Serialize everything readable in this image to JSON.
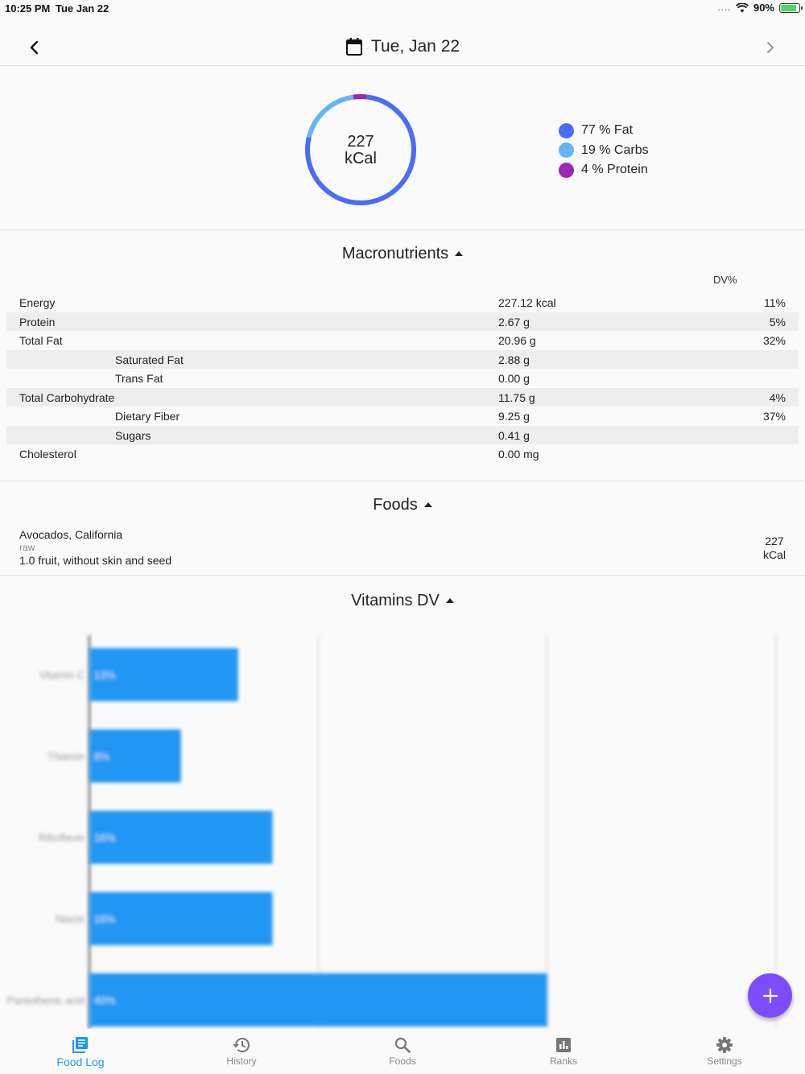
{
  "status_bar": {
    "time": "10:25 PM",
    "date": "Tue Jan 22",
    "signal": "....",
    "battery": "90%",
    "battery_level": 0.9
  },
  "header": {
    "title": "Tue, Jan 22",
    "back_icon": "chevron-left-icon",
    "forward_icon": "chevron-right-icon",
    "calendar_icon": "calendar-icon"
  },
  "summary": {
    "kcal_value": "227",
    "kcal_unit": "kCal",
    "legend": [
      {
        "label": "77 % Fat",
        "color": "#4a6cf7"
      },
      {
        "label": "19 % Carbs",
        "color": "#64b5f6"
      },
      {
        "label": "4 % Protein",
        "color": "#9c27b0"
      }
    ],
    "split": [
      {
        "name": "Fat",
        "percent": 77,
        "color": "#4a6cf7"
      },
      {
        "name": "Carbs",
        "percent": 19,
        "color": "#64b5f6"
      },
      {
        "name": "Protein",
        "percent": 4,
        "color": "#9c27b0"
      }
    ]
  },
  "macronutrients": {
    "heading": "Macronutrients",
    "dv_header": "DV%",
    "rows": [
      {
        "name": "Energy",
        "amount": "227.12 kcal",
        "dv": "11%"
      },
      {
        "name": "Protein",
        "amount": "2.67 g",
        "dv": "5%"
      },
      {
        "name": "Total Fat",
        "amount": "20.96 g",
        "dv": "32%"
      },
      {
        "name": "Saturated Fat",
        "amount": "2.88 g",
        "dv": ""
      },
      {
        "name": "Trans Fat",
        "amount": "0.00 g",
        "dv": ""
      },
      {
        "name": "Total Carbohydrate",
        "amount": "11.75 g",
        "dv": "4%"
      },
      {
        "name": "Dietary Fiber",
        "amount": "9.25 g",
        "dv": "37%"
      },
      {
        "name": "Sugars",
        "amount": "0.41 g",
        "dv": ""
      },
      {
        "name": "Cholesterol",
        "amount": "0.00 mg",
        "dv": ""
      }
    ]
  },
  "foods": {
    "heading": "Foods",
    "items": [
      {
        "name": "Avocados, California",
        "prep": "raw",
        "serving": "1.0 fruit, without skin and seed",
        "kcal_value": "227",
        "kcal_unit": "kCal"
      }
    ]
  },
  "vitamins": {
    "heading": "Vitamins DV"
  },
  "chart_data": {
    "type": "bar",
    "orientation": "horizontal",
    "categories": [
      "Vitamin C",
      "Thiamin",
      "Riboflavin",
      "Niacin",
      "Pantothenic acid"
    ],
    "values": [
      13,
      8,
      16,
      16,
      40
    ],
    "value_labels": [
      "13%",
      "8%",
      "16%",
      "16%",
      "40%"
    ],
    "xlim": [
      0,
      60
    ],
    "grid": true,
    "color": "#2196f3"
  },
  "fab": {
    "icon": "plus-icon"
  },
  "bottom_nav": [
    {
      "label": "Food Log",
      "icon": "food-log-icon",
      "active": true
    },
    {
      "label": "History",
      "icon": "history-icon",
      "active": false
    },
    {
      "label": "Foods",
      "icon": "search-icon",
      "active": false
    },
    {
      "label": "Ranks",
      "icon": "ranks-icon",
      "active": false
    },
    {
      "label": "Settings",
      "icon": "gear-icon",
      "active": false
    }
  ]
}
